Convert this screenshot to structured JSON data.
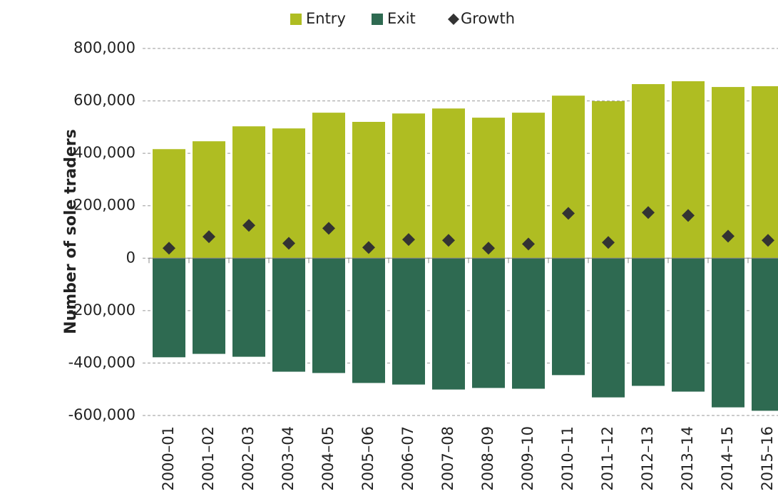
{
  "chart_data": {
    "type": "bar",
    "y_label": "Number of sole traders",
    "categories": [
      "2000–01",
      "2001–02",
      "2002–03",
      "2003–04",
      "2004–05",
      "2005–06",
      "2006–07",
      "2007–08",
      "2008–09",
      "2009–10",
      "2010–11",
      "2011–12",
      "2012–13",
      "2013–14",
      "2014–15",
      "2015–16"
    ],
    "series": [
      {
        "name": "Entry",
        "type": "bar",
        "color": "#afbd22",
        "values": [
          416000,
          446000,
          503000,
          495000,
          555000,
          520000,
          552000,
          571000,
          536000,
          555000,
          620000,
          599000,
          664000,
          675000,
          653000,
          656000
        ]
      },
      {
        "name": "Exit",
        "type": "bar",
        "color": "#2e6a51",
        "values": [
          -378000,
          -365000,
          -376000,
          -433000,
          -438000,
          -476000,
          -482000,
          -501000,
          -495000,
          -498000,
          -446000,
          -531000,
          -487000,
          -509000,
          -569000,
          -582000
        ]
      },
      {
        "name": "Growth",
        "type": "scatter",
        "marker": "diamond",
        "color": "#333333",
        "values": [
          38000,
          82000,
          125000,
          57000,
          114000,
          41000,
          71000,
          68000,
          38000,
          54000,
          171000,
          60000,
          174000,
          163000,
          84000,
          68000
        ]
      }
    ],
    "ylim": [
      -600000,
      800000
    ],
    "yticks": [
      {
        "value": -600000,
        "label": "-600,000"
      },
      {
        "value": -400000,
        "label": "-400,000"
      },
      {
        "value": -200000,
        "label": "-200,000"
      },
      0,
      {
        "value": 200000,
        "label": "200,000"
      },
      {
        "value": 400000,
        "label": "400,000"
      },
      {
        "value": 600000,
        "label": "600,000"
      },
      {
        "value": 800000,
        "label": "800,000"
      }
    ],
    "grid": true,
    "legend": "top"
  }
}
